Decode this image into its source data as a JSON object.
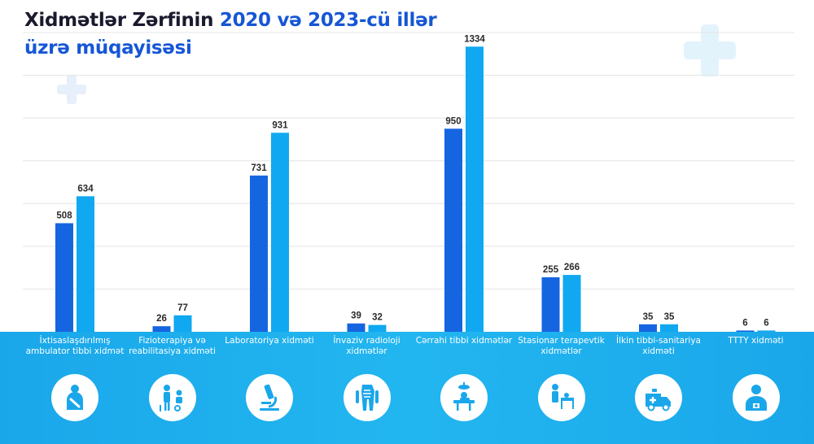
{
  "title": {
    "line1_plain": "Xidmətlər Zərfinin ",
    "line1_highlight": "2020 və 2023-cü illər",
    "line2": "üzrə müqayisəsi"
  },
  "colors": {
    "series_2020": "#1565e0",
    "series_2023": "#10a8f0",
    "band": "#1aa7ea",
    "title_dark": "#1a1a2e",
    "title_accent": "#1656d6"
  },
  "chart_data": {
    "type": "bar",
    "title": "Xidmətlər Zərfinin 2020 və 2023-cü illər üzrə müqayisəsi",
    "categories": [
      [
        "İxtisaslaşdırılmış",
        "ambulator tibbi xidmət"
      ],
      [
        "Fizioterapiya və",
        "reabilitasiya xidməti"
      ],
      [
        "Laboratoriya xidməti"
      ],
      [
        "İnvaziv radioloji",
        "xidmətlər"
      ],
      [
        "Cərrahi tibbi xidmətlər"
      ],
      [
        "Stasionar terapevtik",
        "xidmətlər"
      ],
      [
        "İlkin tibbi-sanitariya",
        "xidməti"
      ],
      [
        "TTTY xidməti"
      ]
    ],
    "series": [
      {
        "values": [
          508,
          26,
          731,
          39,
          950,
          255,
          35,
          6
        ]
      },
      {
        "values": [
          634,
          77,
          931,
          32,
          1334,
          266,
          35,
          6
        ]
      }
    ],
    "ylim": [
      0,
      1400
    ],
    "grid": true,
    "legend": "none"
  },
  "icons": [
    "injured-patient-icon",
    "physiotherapy-icon",
    "microscope-icon",
    "radiology-body-icon",
    "surgery-table-icon",
    "hospital-bed-icon",
    "ambulance-icon",
    "doctor-icon"
  ]
}
